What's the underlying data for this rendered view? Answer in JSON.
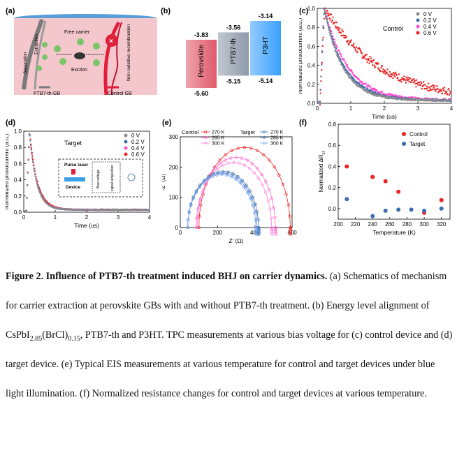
{
  "panel_labels": {
    "a": "(a)",
    "b": "(b)",
    "c": "(c)",
    "d": "(d)",
    "e": "(e)",
    "f": "(f)"
  },
  "panel_a": {
    "free_carrier": "Free carrier",
    "exciton": "Exciton",
    "extraction": "Extraction",
    "separation": "Separation",
    "non_radiative": "Non-radiative recombination",
    "legend_ptb7": "PTB7-th-GB",
    "legend_control": "Control GB",
    "colors": {
      "bg": "#f4c7cd",
      "ptb7_line": "#7a7a7a",
      "control_line": "#e0203a",
      "particle": "#7cc46a",
      "film": "#5aa0d8"
    }
  },
  "panel_b": {
    "chart_data": {
      "type": "bar",
      "categories": [
        "Perovskite",
        "PTB7-th",
        "P3HT"
      ],
      "series": [
        {
          "name": "top",
          "values": [
            -3.83,
            -3.56,
            -3.14
          ]
        },
        {
          "name": "bottom",
          "values": [
            -5.6,
            -5.15,
            -5.14
          ]
        }
      ],
      "labels": {
        "top": [
          "-3.83",
          "-3.56",
          "-3.14"
        ],
        "bottom": [
          "-5.60",
          "-5.15",
          "-5.14"
        ]
      },
      "colors": [
        "#e05a6a",
        "#8e9aaa",
        "#3aa0ff"
      ]
    }
  },
  "panel_c": {
    "title": "Control",
    "chart_data": {
      "type": "line",
      "xlabel": "Time (us)",
      "ylabel": "Normalized photocurrent (a.u.)",
      "xlim": [
        0,
        4
      ],
      "ylim": [
        0,
        1.0
      ],
      "xticks": [
        "0",
        "1",
        "2",
        "3",
        "4"
      ],
      "yticks": [
        "0.0",
        "0.2",
        "0.4",
        "0.6",
        "0.8",
        "1.0"
      ],
      "series": [
        {
          "name": "0 V",
          "color": "#8a8a8a",
          "peak_time": 0.2,
          "decay": 0.55,
          "noise": 0.01
        },
        {
          "name": "0.2 V",
          "color": "#3b6db0",
          "peak_time": 0.2,
          "decay": 0.6,
          "noise": 0.01
        },
        {
          "name": "0.4 V",
          "color": "#ff4fd0",
          "peak_time": 0.2,
          "decay": 0.7,
          "noise": 0.015
        },
        {
          "name": "0.6 V",
          "color": "#ee2222",
          "peak_time": 0.22,
          "decay": 1.6,
          "noise": 0.04
        }
      ]
    }
  },
  "panel_d": {
    "title": "Target",
    "inset": {
      "pulse_laser": "Pulse laser",
      "device": "Device",
      "bias": "Bias voltage",
      "acq": "signal acquisition"
    },
    "chart_data": {
      "type": "line",
      "xlabel": "Time (us)",
      "ylabel": "Normalized photocurrent (a.u.)",
      "xlim": [
        0,
        4
      ],
      "ylim": [
        0,
        1.0
      ],
      "xticks": [
        "0",
        "1",
        "2",
        "3",
        "4"
      ],
      "yticks": [
        "0.0",
        "0.2",
        "0.4",
        "0.6",
        "0.8",
        "1.0"
      ],
      "series": [
        {
          "name": "0 V",
          "color": "#8a8a8a",
          "peak_time": 0.18,
          "decay": 0.22,
          "noise": 0.005
        },
        {
          "name": "0.2 V",
          "color": "#3b6db0",
          "peak_time": 0.18,
          "decay": 0.22,
          "noise": 0.005
        },
        {
          "name": "0.4 V",
          "color": "#ff4fd0",
          "peak_time": 0.18,
          "decay": 0.22,
          "noise": 0.005
        },
        {
          "name": "0.6 V",
          "color": "#ee2222",
          "peak_time": 0.18,
          "decay": 0.24,
          "noise": 0.006
        }
      ]
    }
  },
  "panel_e": {
    "chart_data": {
      "type": "scatter",
      "xlabel": "Z' (Ω)",
      "ylabel": "-Z'' (Ω)",
      "xlim": [
        0,
        600
      ],
      "ylim": [
        0,
        300
      ],
      "xticks": [
        "0",
        "200",
        "400",
        "600"
      ],
      "yticks": [
        "0",
        "100",
        "200",
        "300"
      ],
      "legend_groups": [
        "Control",
        "Target"
      ],
      "series": [
        {
          "name": "270 K",
          "group": "Control",
          "color": "#ee2222",
          "x_start": 100,
          "x_end": 590,
          "peak": 265
        },
        {
          "name": "285 K",
          "group": "Control",
          "color": "#ff66cc",
          "x_start": 90,
          "x_end": 510,
          "peak": 232
        },
        {
          "name": "300 K",
          "group": "Control",
          "color": "#ff88dd",
          "x_start": 85,
          "x_end": 490,
          "peak": 215
        },
        {
          "name": "270 K",
          "group": "Target",
          "color": "#3b6db0",
          "x_start": 40,
          "x_end": 420,
          "peak": 185
        },
        {
          "name": "285 K",
          "group": "Target",
          "color": "#5b8dd0",
          "x_start": 40,
          "x_end": 412,
          "peak": 180
        },
        {
          "name": "300 K",
          "group": "Target",
          "color": "#7aa8f0",
          "x_start": 40,
          "x_end": 405,
          "peak": 175
        }
      ]
    }
  },
  "panel_f": {
    "chart_data": {
      "type": "scatter",
      "xlabel": "Temperature (K)",
      "ylabel": "Normalized ΔR",
      "ylabel_sub": "ct",
      "xlim": [
        200,
        330
      ],
      "ylim": [
        -0.1,
        0.8
      ],
      "xticks": [
        "200",
        "220",
        "240",
        "260",
        "280",
        "300",
        "320"
      ],
      "yticks": [
        "0.0",
        "0.2",
        "0.4",
        "0.6",
        "0.8"
      ],
      "series": [
        {
          "name": "Control",
          "color": "#ee2222",
          "x": [
            210,
            240,
            255,
            270,
            300,
            320
          ],
          "y": [
            0.4,
            0.3,
            0.26,
            0.16,
            -0.04,
            0.08
          ]
        },
        {
          "name": "Target",
          "color": "#3b6db0",
          "x": [
            210,
            240,
            255,
            270,
            285,
            300,
            320
          ],
          "y": [
            0.09,
            -0.07,
            -0.02,
            -0.01,
            -0.01,
            -0.02,
            0.0
          ]
        }
      ]
    }
  },
  "caption": {
    "fig": "Figure 2. Influence of PTB7-th treatment induced BHJ on carrier dynamics.",
    "a": "(a) Schematics of mechanism for carrier extraction at perovskite GBs with and without PTB7-th treatment.",
    "b_pre": "(b) Energy level alignment of CsPbI",
    "b_sub1": "2.85",
    "b_mid": "(BrCl)",
    "b_sub2": "0.15",
    "b_post": ", PTB7-th and P3HT. TPC measurements at various bias voltage for (c) control device and (d) target device. (e) Typical EIS measurements at various temperature for control and target devices under blue light illumination. (f) Normalized resistance changes for control and target devices at various temperature."
  }
}
